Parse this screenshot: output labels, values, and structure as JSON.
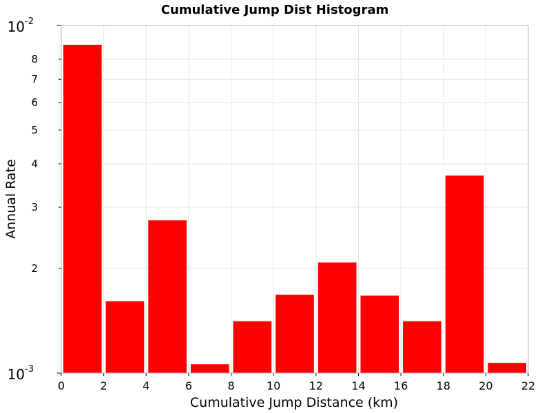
{
  "chart_data": {
    "type": "bar",
    "title": "Cumulative Jump Dist Histogram",
    "xlabel": "Cumulative Jump Distance (km)",
    "ylabel": "Annual Rate",
    "x_range": [
      0,
      22
    ],
    "y_range": [
      0.001,
      0.01
    ],
    "y_scale": "log",
    "grid": true,
    "bar_color": "#ff0000",
    "bin_width": 2,
    "bins": [
      {
        "x_start": 0,
        "x_end": 2,
        "value": 0.0088
      },
      {
        "x_start": 2,
        "x_end": 4,
        "value": 0.00161
      },
      {
        "x_start": 4,
        "x_end": 6,
        "value": 0.00275
      },
      {
        "x_start": 6,
        "x_end": 8,
        "value": 0.00106
      },
      {
        "x_start": 8,
        "x_end": 10,
        "value": 0.00141
      },
      {
        "x_start": 10,
        "x_end": 12,
        "value": 0.00168
      },
      {
        "x_start": 12,
        "x_end": 14,
        "value": 0.00208
      },
      {
        "x_start": 14,
        "x_end": 16,
        "value": 0.00167
      },
      {
        "x_start": 16,
        "x_end": 18,
        "value": 0.00141
      },
      {
        "x_start": 18,
        "x_end": 20,
        "value": 0.0037
      },
      {
        "x_start": 20,
        "x_end": 22,
        "value": 0.00107
      }
    ],
    "x_ticks": [
      "0",
      "2",
      "4",
      "6",
      "8",
      "10",
      "12",
      "14",
      "16",
      "18",
      "20",
      "22"
    ],
    "x_tick_values": [
      0,
      2,
      4,
      6,
      8,
      10,
      12,
      14,
      16,
      18,
      20,
      22
    ],
    "y_major_ticks": [
      {
        "value": 0.001,
        "base": "10",
        "exp": "-3"
      },
      {
        "value": 0.01,
        "base": "10",
        "exp": "-2"
      }
    ],
    "y_minor_ticks": [
      {
        "value": 0.002,
        "label": "2"
      },
      {
        "value": 0.003,
        "label": "3"
      },
      {
        "value": 0.004,
        "label": "4"
      },
      {
        "value": 0.005,
        "label": "5"
      },
      {
        "value": 0.006,
        "label": "6"
      },
      {
        "value": 0.007,
        "label": "7"
      },
      {
        "value": 0.008,
        "label": "8"
      }
    ]
  }
}
